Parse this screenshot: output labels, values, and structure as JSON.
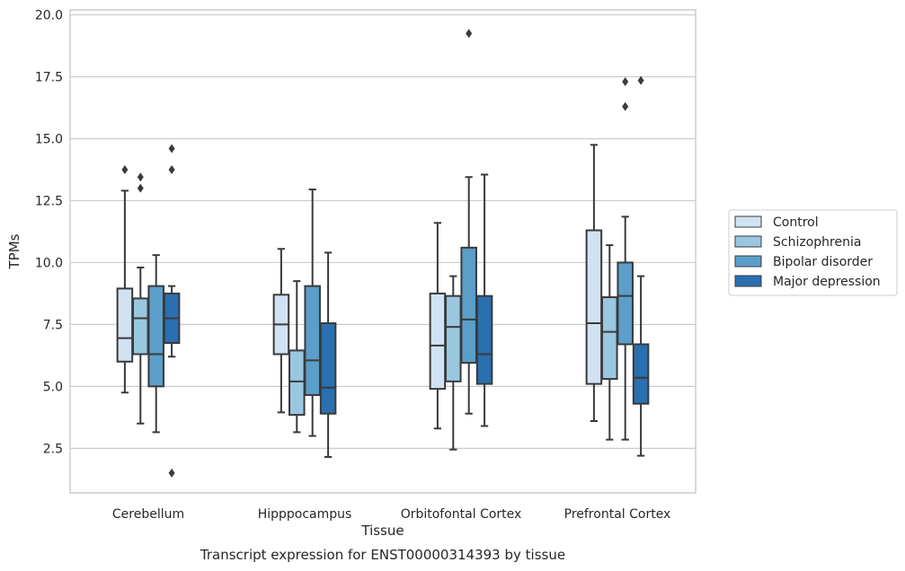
{
  "chart_data": {
    "type": "boxplot",
    "xlabel": "Tissue",
    "ylabel": "TPMs",
    "caption": "Transcript expression for ENST00000314393 by tissue",
    "ylim": [
      0.7,
      20.2
    ],
    "yticks": [
      2.5,
      5.0,
      7.5,
      10.0,
      12.5,
      15.0,
      17.5,
      20.0
    ],
    "ytick_labels": [
      "2.5",
      "5.0",
      "7.5",
      "10.0",
      "12.5",
      "15.0",
      "17.5",
      "20.0"
    ],
    "grid": "y",
    "legend_position": "right",
    "categories": [
      "Cerebellum",
      "Hipppocampus",
      "Orbitofontal Cortex",
      "Prefrontal Cortex"
    ],
    "series": [
      {
        "name": "Control",
        "color": "#d1e2f2",
        "boxes": [
          {
            "whislo": 4.75,
            "q1": 6.0,
            "med": 6.95,
            "q3": 8.95,
            "whishi": 12.9,
            "fliers": [
              13.75
            ]
          },
          {
            "whislo": 3.95,
            "q1": 6.3,
            "med": 7.5,
            "q3": 8.7,
            "whishi": 10.55,
            "fliers": []
          },
          {
            "whislo": 3.3,
            "q1": 4.9,
            "med": 6.65,
            "q3": 8.75,
            "whishi": 11.6,
            "fliers": []
          },
          {
            "whislo": 3.6,
            "q1": 5.1,
            "med": 7.55,
            "q3": 11.3,
            "whishi": 14.75,
            "fliers": []
          }
        ]
      },
      {
        "name": "Schizophrenia",
        "color": "#9ac7e0",
        "boxes": [
          {
            "whislo": 3.5,
            "q1": 6.3,
            "med": 7.75,
            "q3": 8.55,
            "whishi": 9.8,
            "fliers": [
              13.0,
              13.45
            ]
          },
          {
            "whislo": 3.15,
            "q1": 3.85,
            "med": 5.2,
            "q3": 6.45,
            "whishi": 9.25,
            "fliers": []
          },
          {
            "whislo": 2.45,
            "q1": 5.2,
            "med": 7.4,
            "q3": 8.65,
            "whishi": 9.45,
            "fliers": []
          },
          {
            "whislo": 2.85,
            "q1": 5.3,
            "med": 7.2,
            "q3": 8.6,
            "whishi": 10.7,
            "fliers": []
          }
        ]
      },
      {
        "name": "Bipolar disorder",
        "color": "#5b9ec9",
        "boxes": [
          {
            "whislo": 3.15,
            "q1": 5.0,
            "med": 6.3,
            "q3": 9.05,
            "whishi": 10.3,
            "fliers": []
          },
          {
            "whislo": 3.0,
            "q1": 4.65,
            "med": 6.05,
            "q3": 9.05,
            "whishi": 12.95,
            "fliers": []
          },
          {
            "whislo": 3.9,
            "q1": 5.95,
            "med": 7.7,
            "q3": 10.6,
            "whishi": 13.45,
            "fliers": [
              19.25
            ]
          },
          {
            "whislo": 2.85,
            "q1": 6.7,
            "med": 8.65,
            "q3": 10.0,
            "whishi": 11.85,
            "fliers": [
              16.3,
              17.3
            ]
          }
        ]
      },
      {
        "name": "Major depression",
        "color": "#2a6fb0",
        "boxes": [
          {
            "whislo": 6.2,
            "q1": 6.75,
            "med": 7.75,
            "q3": 8.75,
            "whishi": 9.05,
            "fliers": [
              1.5,
              13.75,
              14.6
            ]
          },
          {
            "whislo": 2.15,
            "q1": 3.9,
            "med": 4.95,
            "q3": 7.55,
            "whishi": 10.4,
            "fliers": []
          },
          {
            "whislo": 3.4,
            "q1": 5.1,
            "med": 6.3,
            "q3": 8.65,
            "whishi": 13.55,
            "fliers": []
          },
          {
            "whislo": 2.2,
            "q1": 4.3,
            "med": 5.35,
            "q3": 6.7,
            "whishi": 9.45,
            "fliers": [
              17.35
            ]
          }
        ]
      }
    ]
  },
  "style": {
    "grid_color": "#cccccc",
    "frame_color": "#cccccc",
    "line_color": "#3a3a3a"
  }
}
